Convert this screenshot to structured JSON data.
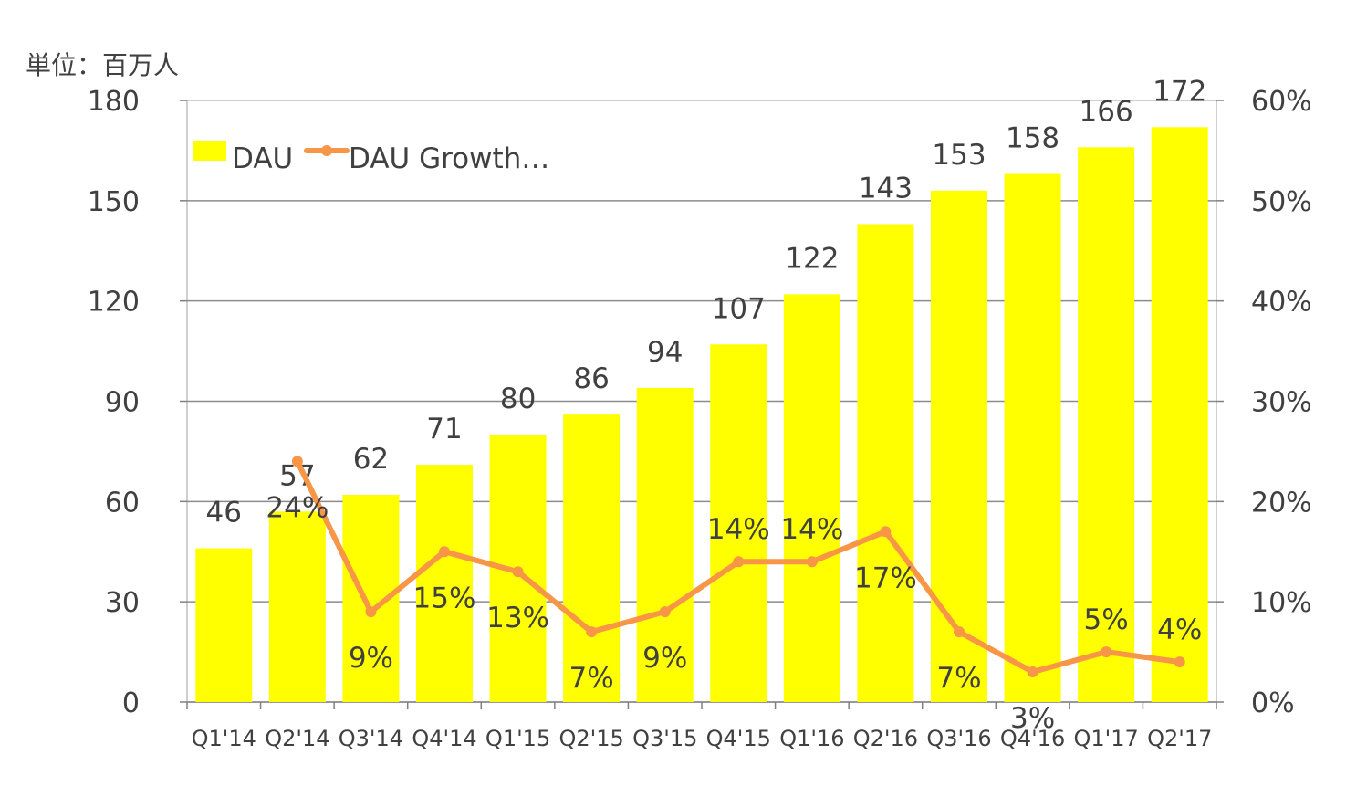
{
  "unit_label": "単位：百万人",
  "chart_data": {
    "type": "bar",
    "categories": [
      "Q1'14",
      "Q2'14",
      "Q3'14",
      "Q4'14",
      "Q1'15",
      "Q2'15",
      "Q3'15",
      "Q4'15",
      "Q1'16",
      "Q2'16",
      "Q3'16",
      "Q4'16",
      "Q1'17",
      "Q2'17"
    ],
    "series": [
      {
        "name": "DAU",
        "type": "bar",
        "axis": "left",
        "color": "#ffff00",
        "values": [
          46,
          57,
          62,
          71,
          80,
          86,
          94,
          107,
          122,
          143,
          153,
          158,
          166,
          172
        ]
      },
      {
        "name": "DAU Growth…",
        "type": "line",
        "axis": "right",
        "color": "#f79646",
        "values": [
          null,
          24,
          9,
          15,
          13,
          7,
          9,
          14,
          14,
          17,
          7,
          3,
          5,
          4
        ],
        "labels": [
          "",
          "24%",
          "9%",
          "15%",
          "13%",
          "7%",
          "9%",
          "14%",
          "14%",
          "17%",
          "7%",
          "3%",
          "5%",
          "4%"
        ]
      }
    ],
    "y_left": {
      "min": 0,
      "max": 180,
      "ticks": [
        "0",
        "30",
        "60",
        "90",
        "120",
        "150",
        "180"
      ]
    },
    "y_right": {
      "min": 0,
      "max": 60,
      "ticks": [
        "0%",
        "10%",
        "20%",
        "30%",
        "40%",
        "50%",
        "60%"
      ]
    },
    "grid": true,
    "legend": {
      "position": "top-left",
      "entries": [
        "DAU",
        "DAU Growth…"
      ]
    }
  }
}
